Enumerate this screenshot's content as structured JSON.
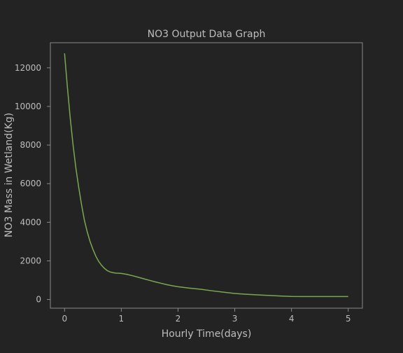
{
  "chart_data": {
    "type": "line",
    "title": "NO3 Output Data Graph",
    "xlabel": "Hourly Time(days)",
    "ylabel": "NO3 Mass in Wetland(Kg)",
    "xlim": [
      -0.25,
      5.25
    ],
    "ylim": [
      -450,
      13300
    ],
    "xticks": [
      0,
      1,
      2,
      3,
      4,
      5
    ],
    "yticks": [
      0,
      2000,
      4000,
      6000,
      8000,
      10000,
      12000
    ],
    "grid": false,
    "colors": {
      "background": "#232323",
      "axes": "#8a8a8a",
      "text": "#bdbdbd",
      "line": "#7aa84f"
    },
    "series": [
      {
        "color": "#7aa84f",
        "x": [
          0,
          0.05,
          0.1,
          0.15,
          0.2,
          0.25,
          0.3,
          0.35,
          0.4,
          0.45,
          0.5,
          0.55,
          0.6,
          0.65,
          0.7,
          0.75,
          0.8,
          0.85,
          0.9,
          0.95,
          1.0,
          1.1,
          1.2,
          1.3,
          1.4,
          1.5,
          1.6,
          1.7,
          1.8,
          1.9,
          2.0,
          2.2,
          2.4,
          2.6,
          2.8,
          3.0,
          3.2,
          3.4,
          3.6,
          3.8,
          4.0,
          4.2,
          4.4,
          4.6,
          4.8,
          5.0
        ],
        "y": [
          12750,
          11000,
          9400,
          8000,
          6800,
          5800,
          4900,
          4100,
          3500,
          3000,
          2600,
          2250,
          1980,
          1780,
          1620,
          1500,
          1430,
          1390,
          1370,
          1360,
          1350,
          1300,
          1230,
          1150,
          1070,
          990,
          910,
          840,
          770,
          710,
          660,
          590,
          530,
          450,
          380,
          310,
          270,
          240,
          210,
          180,
          160,
          155,
          155,
          155,
          155,
          155
        ]
      }
    ]
  }
}
